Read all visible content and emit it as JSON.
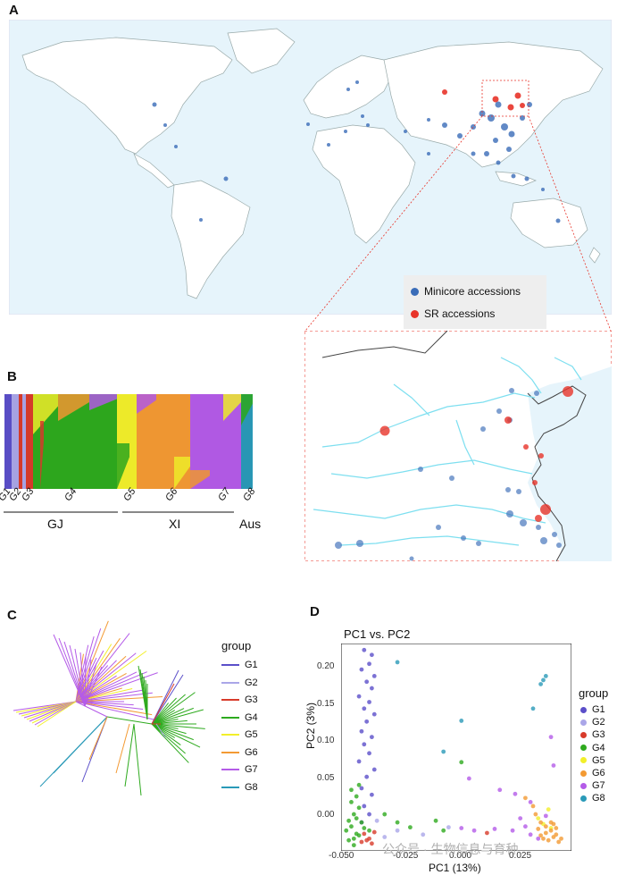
{
  "panels": {
    "a": "A",
    "b": "B",
    "c": "C",
    "d": "D"
  },
  "map_legend": {
    "minicore": "Minicore accessions",
    "sr": "SR accessions",
    "minicore_color": "#3a6cb8",
    "sr_color": "#e8342a"
  },
  "structure": {
    "group_labels": [
      "G1",
      "G2",
      "G3",
      "G4",
      "G5",
      "G6",
      "G7",
      "G8"
    ],
    "clusters": [
      "GJ",
      "XI",
      "Aus"
    ]
  },
  "tree": {
    "legend_title": "group",
    "groups": [
      {
        "name": "G1",
        "color": "#5b4fc9"
      },
      {
        "name": "G2",
        "color": "#aaa6e8"
      },
      {
        "name": "G3",
        "color": "#d83b2b"
      },
      {
        "name": "G4",
        "color": "#2eaa1e"
      },
      {
        "name": "G5",
        "color": "#f2ef2a"
      },
      {
        "name": "G6",
        "color": "#f39a33"
      },
      {
        "name": "G7",
        "color": "#b45be8"
      },
      {
        "name": "G8",
        "color": "#2a9ab8"
      }
    ]
  },
  "pca": {
    "title": "PC1 vs. PC2",
    "legend_title": "group",
    "xlabel": "PC1 (13%)",
    "ylabel": "PC2 (3%)",
    "x_ticks": [
      "-0.050",
      "-0.025",
      "0.000",
      "0.025"
    ],
    "y_ticks": [
      "0.20",
      "0.15",
      "0.10",
      "0.05",
      "0.00"
    ],
    "groups": [
      "G1",
      "G2",
      "G3",
      "G4",
      "G5",
      "G6",
      "G7",
      "G8"
    ]
  },
  "chart_data": {
    "type": "scatter",
    "title": "PC1 vs. PC2",
    "xlabel": "PC1 (13%)",
    "ylabel": "PC2 (3%)",
    "xlim": [
      -0.052,
      0.038
    ],
    "ylim": [
      -0.025,
      0.23
    ],
    "series": [
      {
        "name": "G1",
        "points": [
          [
            -0.043,
            0.222
          ],
          [
            -0.04,
            0.216
          ],
          [
            -0.041,
            0.205
          ],
          [
            -0.044,
            0.198
          ],
          [
            -0.039,
            0.19
          ],
          [
            -0.042,
            0.183
          ],
          [
            -0.04,
            0.175
          ],
          [
            -0.045,
            0.165
          ],
          [
            -0.041,
            0.158
          ],
          [
            -0.043,
            0.15
          ],
          [
            -0.039,
            0.143
          ],
          [
            -0.042,
            0.134
          ],
          [
            -0.044,
            0.122
          ],
          [
            -0.04,
            0.115
          ],
          [
            -0.043,
            0.106
          ],
          [
            -0.041,
            0.095
          ],
          [
            -0.045,
            0.085
          ],
          [
            -0.039,
            0.075
          ],
          [
            -0.042,
            0.066
          ],
          [
            -0.044,
            0.052
          ],
          [
            -0.04,
            0.044
          ],
          [
            -0.043,
            0.03
          ],
          [
            -0.041,
            0.02
          ],
          [
            -0.044,
            0.01
          ]
        ]
      },
      {
        "name": "G2",
        "points": [
          [
            -0.03,
            0.0
          ],
          [
            -0.02,
            -0.005
          ],
          [
            -0.035,
            -0.008
          ],
          [
            -0.01,
            0.004
          ],
          [
            -0.038,
            0.012
          ]
        ]
      },
      {
        "name": "G3",
        "points": [
          [
            -0.043,
            -0.004
          ],
          [
            -0.041,
            -0.01
          ],
          [
            -0.039,
            -0.002
          ],
          [
            -0.044,
            -0.014
          ],
          [
            -0.04,
            -0.016
          ],
          [
            -0.042,
            -0.012
          ],
          [
            0.005,
            -0.003
          ]
        ]
      },
      {
        "name": "G4",
        "points": [
          [
            -0.05,
            0.0
          ],
          [
            -0.048,
            0.005
          ],
          [
            -0.046,
            -0.004
          ],
          [
            -0.049,
            0.012
          ],
          [
            -0.047,
            0.02
          ],
          [
            -0.045,
            0.028
          ],
          [
            -0.048,
            0.035
          ],
          [
            -0.046,
            0.042
          ],
          [
            -0.044,
            0.01
          ],
          [
            -0.047,
            -0.01
          ],
          [
            -0.045,
            -0.006
          ],
          [
            -0.049,
            -0.012
          ],
          [
            -0.046,
            0.015
          ],
          [
            -0.043,
            0.003
          ],
          [
            -0.048,
            0.05
          ],
          [
            -0.045,
            0.056
          ],
          [
            -0.041,
            0.0
          ],
          [
            -0.03,
            0.01
          ],
          [
            -0.035,
            0.02
          ],
          [
            -0.025,
            0.004
          ],
          [
            -0.015,
            0.012
          ],
          [
            -0.005,
            0.084
          ],
          [
            -0.012,
            0.0
          ],
          [
            -0.047,
            -0.018
          ]
        ]
      },
      {
        "name": "G5",
        "points": [
          [
            0.027,
            0.008
          ],
          [
            0.03,
            0.003
          ],
          [
            0.025,
            0.015
          ],
          [
            0.029,
            0.026
          ]
        ]
      },
      {
        "name": "G6",
        "points": [
          [
            0.02,
            0.04
          ],
          [
            0.024,
            0.02
          ],
          [
            0.026,
            0.01
          ],
          [
            0.028,
            0.005
          ],
          [
            0.03,
            0.0
          ],
          [
            0.032,
            -0.005
          ],
          [
            0.027,
            -0.01
          ],
          [
            0.029,
            -0.012
          ],
          [
            0.031,
            -0.008
          ],
          [
            0.033,
            -0.014
          ],
          [
            0.025,
            0.002
          ],
          [
            0.028,
            -0.003
          ],
          [
            0.03,
            0.01
          ],
          [
            0.034,
            -0.01
          ],
          [
            0.032,
            0.003
          ],
          [
            0.023,
            0.03
          ],
          [
            0.026,
            -0.006
          ],
          [
            0.031,
            0.008
          ]
        ]
      },
      {
        "name": "G7",
        "points": [
          [
            -0.002,
            0.064
          ],
          [
            0.01,
            0.05
          ],
          [
            0.016,
            0.045
          ],
          [
            0.022,
            0.035
          ],
          [
            0.018,
            0.015
          ],
          [
            0.02,
            0.005
          ],
          [
            0.015,
            0.0
          ],
          [
            0.008,
            0.002
          ],
          [
            0.0,
            0.0
          ],
          [
            -0.005,
            0.003
          ],
          [
            0.022,
            -0.005
          ],
          [
            0.028,
            0.018
          ],
          [
            0.031,
            0.08
          ],
          [
            0.03,
            0.115
          ],
          [
            0.025,
            -0.01
          ]
        ]
      },
      {
        "name": "G8",
        "points": [
          [
            -0.03,
            0.207
          ],
          [
            0.028,
            0.19
          ],
          [
            0.027,
            0.185
          ],
          [
            0.026,
            0.18
          ],
          [
            0.023,
            0.15
          ],
          [
            -0.005,
            0.135
          ],
          [
            -0.012,
            0.097
          ]
        ]
      }
    ]
  },
  "watermark": "公众号 · 生物信息与育种"
}
